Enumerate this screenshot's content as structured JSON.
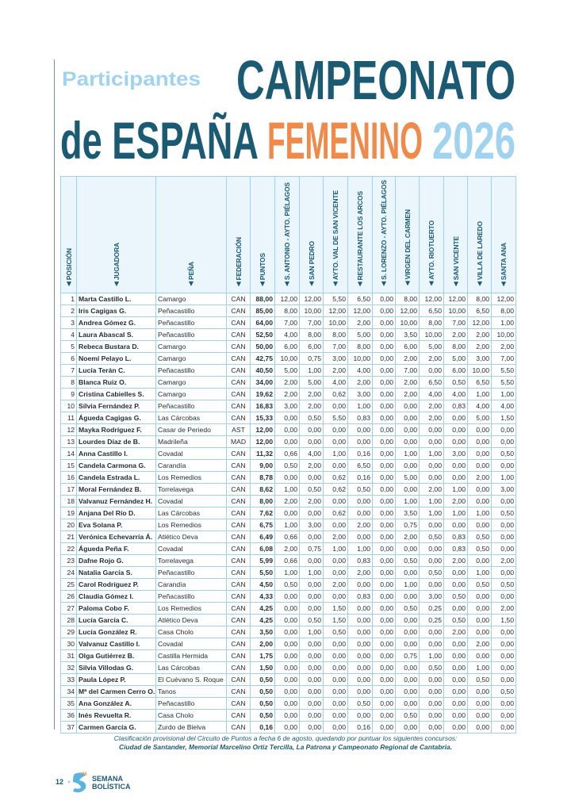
{
  "header": {
    "subtitle": "Participantes",
    "title_line1": "CAMPEONATO",
    "title_line2a": "de ESPAÑA",
    "title_line2b": "FEMENINO",
    "title_line2c": "2026"
  },
  "table": {
    "columns": [
      "POSICIÓN",
      "JUGADORA",
      "PEÑA",
      "FEDERACIÓN",
      "PUNTOS",
      "S. ANTONIO - AYTO. PIÉLAGOS",
      "SAN PEDRO",
      "AYTO. VAL DE SAN VICENTE",
      "RESTAURANTE LOS ARCOS",
      "S. LORENZO - AYTO. PIÉLAGOS",
      "VIRGEN DEL CARMEN",
      "AYTO. RIOTUERTO",
      "SAN VICENTE",
      "VILLA DE LAREDO",
      "SANTA ANA"
    ],
    "rows": [
      [
        1,
        "Marta Castillo L.",
        "Camargo",
        "CAN",
        "88,00",
        "12,00",
        "12,00",
        "5,50",
        "6,50",
        "0,00",
        "8,00",
        "12,00",
        "12,00",
        "8,00",
        "12,00"
      ],
      [
        2,
        "Iris Cagigas G.",
        "Peñacastillo",
        "CAN",
        "85,00",
        "8,00",
        "10,00",
        "12,00",
        "12,00",
        "0,00",
        "12,00",
        "6,50",
        "10,00",
        "6,50",
        "8,00"
      ],
      [
        3,
        "Andrea Gómez G.",
        "Peñacastillo",
        "CAN",
        "64,00",
        "7,00",
        "7,00",
        "10,00",
        "2,00",
        "0,00",
        "10,00",
        "8,00",
        "7,00",
        "12,00",
        "1,00"
      ],
      [
        4,
        "Laura Abascal S.",
        "Peñacastillo",
        "CAN",
        "52,50",
        "4,00",
        "8,00",
        "8,00",
        "5,00",
        "0,00",
        "3,50",
        "10,00",
        "2,00",
        "2,00",
        "10,00"
      ],
      [
        5,
        "Rebeca Bustara D.",
        "Camargo",
        "CAN",
        "50,00",
        "6,00",
        "6,00",
        "7,00",
        "8,00",
        "0,00",
        "6,00",
        "5,00",
        "8,00",
        "2,00",
        "2,00"
      ],
      [
        6,
        "Noemí Pelayo L.",
        "Camargo",
        "CAN",
        "42,75",
        "10,00",
        "0,75",
        "3,00",
        "10,00",
        "0,00",
        "2,00",
        "2,00",
        "5,00",
        "3,00",
        "7,00"
      ],
      [
        7,
        "Lucía Terán C.",
        "Peñacastillo",
        "CAN",
        "40,50",
        "5,00",
        "1,00",
        "2,00",
        "4,00",
        "0,00",
        "7,00",
        "0,00",
        "6,00",
        "10,00",
        "5,50"
      ],
      [
        8,
        "Blanca Ruiz O.",
        "Camargo",
        "CAN",
        "34,00",
        "2,00",
        "5,00",
        "4,00",
        "2,00",
        "0,00",
        "2,00",
        "6,50",
        "0,50",
        "6,50",
        "5,50"
      ],
      [
        9,
        "Cristina Cabielles S.",
        "Camargo",
        "CAN",
        "19,62",
        "2,00",
        "2,00",
        "0,62",
        "3,00",
        "0,00",
        "2,00",
        "4,00",
        "4,00",
        "1,00",
        "1,00"
      ],
      [
        10,
        "Silvia Fernández P.",
        "Peñacastillo",
        "CAN",
        "16,83",
        "3,00",
        "2,00",
        "0,00",
        "1,00",
        "0,00",
        "0,00",
        "2,00",
        "0,83",
        "4,00",
        "4,00"
      ],
      [
        11,
        "Águeda Cagigas G.",
        "Las Cárcobas",
        "CAN",
        "15,33",
        "0,00",
        "0,50",
        "5,50",
        "0,83",
        "0,00",
        "0,00",
        "2,00",
        "0,00",
        "5,00",
        "1,50"
      ],
      [
        12,
        "Mayka Rodríguez F.",
        "Casar de Periedo",
        "AST",
        "12,00",
        "0,00",
        "0,00",
        "0,00",
        "0,00",
        "0,00",
        "0,00",
        "0,00",
        "0,00",
        "0,00",
        "0,00"
      ],
      [
        13,
        "Lourdes Díaz de B.",
        "Madrileña",
        "MAD",
        "12,00",
        "0,00",
        "0,00",
        "0,00",
        "0,00",
        "0,00",
        "0,00",
        "0,00",
        "0,00",
        "0,00",
        "0,00"
      ],
      [
        14,
        "Anna Castillo I.",
        "Covadal",
        "CAN",
        "11,32",
        "0,66",
        "4,00",
        "1,00",
        "0,16",
        "0,00",
        "1,00",
        "1,00",
        "3,00",
        "0,00",
        "0,50"
      ],
      [
        15,
        "Candela Carmona G.",
        "Carandía",
        "CAN",
        "9,00",
        "0,50",
        "2,00",
        "0,00",
        "6,50",
        "0,00",
        "0,00",
        "0,00",
        "0,00",
        "0,00",
        "0,00"
      ],
      [
        16,
        "Candela Estrada L.",
        "Los Remedios",
        "CAN",
        "8,78",
        "0,00",
        "0,00",
        "0,62",
        "0,16",
        "0,00",
        "5,00",
        "0,00",
        "0,00",
        "2,00",
        "1,00"
      ],
      [
        17,
        "Moral Fernández B.",
        "Torrelavega",
        "CAN",
        "8,62",
        "1,00",
        "0,50",
        "0,62",
        "0,50",
        "0,00",
        "0,00",
        "2,00",
        "1,00",
        "0,00",
        "3,00"
      ],
      [
        18,
        "Valvanuz Fernández H.",
        "Covadal",
        "CAN",
        "8,00",
        "2,00",
        "2,00",
        "0,00",
        "0,00",
        "0,00",
        "1,00",
        "1,00",
        "2,00",
        "0,00",
        "0,00"
      ],
      [
        19,
        "Anjana Del Río D.",
        "Las Cárcobas",
        "CAN",
        "7,62",
        "0,00",
        "0,00",
        "0,62",
        "0,00",
        "0,00",
        "3,50",
        "1,00",
        "1,00",
        "1,00",
        "0,50"
      ],
      [
        20,
        "Eva Solana P.",
        "Los Remedios",
        "CAN",
        "6,75",
        "1,00",
        "3,00",
        "0,00",
        "2,00",
        "0,00",
        "0,75",
        "0,00",
        "0,00",
        "0,00",
        "0,00"
      ],
      [
        21,
        "Verónica Echevarría Á.",
        "Atlético Deva",
        "CAN",
        "6,49",
        "0,66",
        "0,00",
        "2,00",
        "0,00",
        "0,00",
        "2,00",
        "0,50",
        "0,83",
        "0,50",
        "0,00"
      ],
      [
        22,
        "Águeda Peña F.",
        "Covadal",
        "CAN",
        "6,08",
        "2,00",
        "0,75",
        "1,00",
        "1,00",
        "0,00",
        "0,00",
        "0,00",
        "0,83",
        "0,50",
        "0,00"
      ],
      [
        23,
        "Dafne Rojo G.",
        "Torrelavega",
        "CAN",
        "5,99",
        "0,66",
        "0,00",
        "0,00",
        "0,83",
        "0,00",
        "0,50",
        "0,00",
        "2,00",
        "0,00",
        "2,00"
      ],
      [
        24,
        "Natalia García S.",
        "Peñacastillo",
        "CAN",
        "5,50",
        "1,00",
        "1,00",
        "0,00",
        "2,00",
        "0,00",
        "0,00",
        "0,50",
        "0,00",
        "1,00",
        "0,00"
      ],
      [
        25,
        "Carol Rodríguez P.",
        "Carandía",
        "CAN",
        "4,50",
        "0,50",
        "0,00",
        "2,00",
        "0,00",
        "0,00",
        "1,00",
        "0,00",
        "0,00",
        "0,50",
        "0,50"
      ],
      [
        26,
        "Claudia Gómez I.",
        "Peñacastillo",
        "CAN",
        "4,33",
        "0,00",
        "0,00",
        "0,00",
        "0,83",
        "0,00",
        "0,00",
        "3,00",
        "0,50",
        "0,00",
        "0,00"
      ],
      [
        27,
        "Paloma Cobo F.",
        "Los Remedios",
        "CAN",
        "4,25",
        "0,00",
        "0,00",
        "1,50",
        "0,00",
        "0,00",
        "0,50",
        "0,25",
        "0,00",
        "0,00",
        "2,00"
      ],
      [
        28,
        "Lucía García C.",
        "Atlético Deva",
        "CAN",
        "4,25",
        "0,00",
        "0,50",
        "1,50",
        "0,00",
        "0,00",
        "0,00",
        "0,25",
        "0,50",
        "0,00",
        "1,50"
      ],
      [
        29,
        "Lucía González R.",
        "Casa Cholo",
        "CAN",
        "3,50",
        "0,00",
        "1,00",
        "0,50",
        "0,00",
        "0,00",
        "0,00",
        "0,00",
        "2,00",
        "0,00",
        "0,00"
      ],
      [
        30,
        "Valvanuz Castillo I.",
        "Covadal",
        "CAN",
        "2,00",
        "0,00",
        "0,00",
        "0,00",
        "0,00",
        "0,00",
        "0,00",
        "0,00",
        "0,00",
        "2,00",
        "0,00"
      ],
      [
        31,
        "Olga Gutiérrez B.",
        "Castilla Hermida",
        "CAN",
        "1,75",
        "0,00",
        "0,00",
        "0,00",
        "0,00",
        "0,00",
        "0,75",
        "1,00",
        "0,00",
        "0,00",
        "0,00"
      ],
      [
        32,
        "Silvia Villodas G.",
        "Las Cárcobas",
        "CAN",
        "1,50",
        "0,00",
        "0,00",
        "0,00",
        "0,00",
        "0,00",
        "0,00",
        "0,50",
        "0,00",
        "1,00",
        "0,00"
      ],
      [
        33,
        "Paula López P.",
        "El Cuévano S. Roque",
        "CAN",
        "0,50",
        "0,00",
        "0,00",
        "0,00",
        "0,00",
        "0,00",
        "0,00",
        "0,00",
        "0,00",
        "0,50",
        "0,00"
      ],
      [
        34,
        "Mª del Carmen Cerro O.",
        "Tanos",
        "CAN",
        "0,50",
        "0,00",
        "0,00",
        "0,00",
        "0,00",
        "0,00",
        "0,00",
        "0,00",
        "0,00",
        "0,00",
        "0,50"
      ],
      [
        35,
        "Ana González A.",
        "Peñacastillo",
        "CAN",
        "0,50",
        "0,00",
        "0,00",
        "0,00",
        "0,50",
        "0,00",
        "0,00",
        "0,00",
        "0,00",
        "0,00",
        "0,00"
      ],
      [
        36,
        "Inés Revuelta R.",
        "Casa Cholo",
        "CAN",
        "0,50",
        "0,00",
        "0,00",
        "0,00",
        "0,00",
        "0,00",
        "0,50",
        "0,00",
        "0,00",
        "0,00",
        "0,00"
      ],
      [
        37,
        "Carmen García G.",
        "Zurdo de Bielva",
        "CAN",
        "0,16",
        "0,00",
        "0,00",
        "0,00",
        "0,16",
        "0,00",
        "0,00",
        "0,00",
        "0,00",
        "0,00",
        "0,00"
      ]
    ]
  },
  "footnote": {
    "line1": "Clasificación provisional del Circuito de Puntos a fecha 6 de agosto, quedando por puntuar los siguientes concursos:",
    "line2": "Ciudad de Santander, Memorial Marcelino Ortiz Tercilla, La Patrona y Campeonato Regional de Cantabria."
  },
  "footer": {
    "page": "12",
    "logo_year": "26",
    "logo_line1": "SEMANA",
    "logo_line2": "BOLÍSTICA"
  }
}
